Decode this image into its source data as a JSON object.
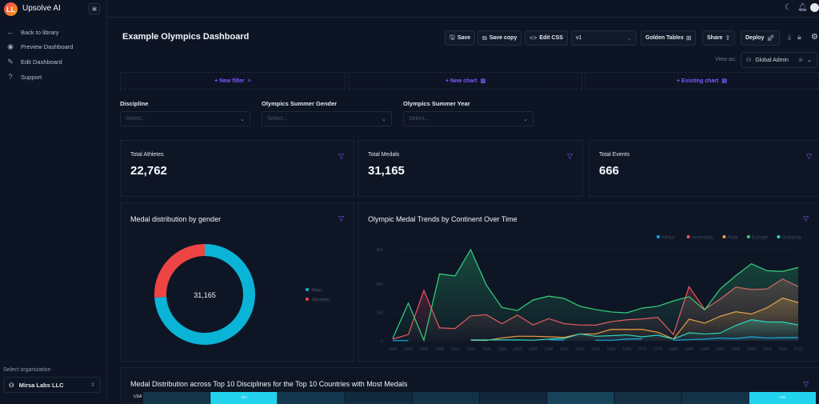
{
  "sidebar": {
    "brand": "Upsolve AI",
    "logo_text": "LL",
    "items": [
      {
        "label": "Back to library",
        "icon": "arrow-left-icon"
      },
      {
        "label": "Preview Dashboard",
        "icon": "eye-icon"
      },
      {
        "label": "Edit Dashboard",
        "icon": "edit-icon"
      },
      {
        "label": "Support",
        "icon": "help-circle-icon"
      }
    ],
    "org_label": "Select organization",
    "org_value": "Mirsa Labs LLC"
  },
  "header": {
    "title": "Example Olympics Dashboard",
    "buttons": {
      "save": "Save",
      "save_copy": "Save copy",
      "edit_css": "Edit CSS",
      "version": "v1",
      "golden_tables": "Golden Tables",
      "share": "Share",
      "deploy": "Deploy"
    },
    "view_as_label": "View as:",
    "view_as_value": "Global Admin"
  },
  "add_row": {
    "new_filter": "+ New filter",
    "new_chart": "+ New chart",
    "existing_chart": "+ Existing chart"
  },
  "filters": [
    {
      "label": "Discipline",
      "placeholder": "Select..."
    },
    {
      "label": "Olympics Summer Gender",
      "placeholder": "Select..."
    },
    {
      "label": "Olympics Summer Year",
      "placeholder": "Select..."
    }
  ],
  "kpis": [
    {
      "label": "Total Athletes",
      "value": "22,762"
    },
    {
      "label": "Total Medals",
      "value": "31,165"
    },
    {
      "label": "Total Events",
      "value": "666"
    }
  ],
  "colors": {
    "accent": "#7c5cff",
    "men": "#06b6d4",
    "women": "#ef4444"
  },
  "chart_data": [
    {
      "type": "pie",
      "title": "Medal distribution by gender",
      "center_label": "31,165",
      "categories": [
        "Men",
        "Women"
      ],
      "shares": [
        0.74,
        0.26
      ],
      "colors": [
        "#0ab4d6",
        "#ef4444"
      ],
      "legend": "right"
    },
    {
      "type": "area",
      "title": "Olympic Medal Trends by Continent Over Time",
      "legend": "top-right",
      "ylim": [
        0,
        800
      ],
      "yticks": [
        0,
        250,
        500,
        800
      ],
      "x": [
        1896,
        1900,
        1904,
        1908,
        1912,
        1920,
        1924,
        1928,
        1932,
        1936,
        1948,
        1952,
        1956,
        1960,
        1964,
        1968,
        1972,
        1976,
        1980,
        1984,
        1988,
        1992,
        1996,
        2000,
        2004,
        2008,
        2012
      ],
      "series": [
        {
          "name": "Africa",
          "color": "#0ea5e9",
          "values": [
            2,
            2,
            null,
            null,
            null,
            null,
            null,
            null,
            null,
            null,
            10,
            5,
            null,
            5,
            5,
            15,
            18,
            null,
            5,
            10,
            15,
            25,
            20,
            35,
            25,
            28,
            30
          ]
        },
        {
          "name": "Americas",
          "color": "#f0535e",
          "values": [
            15,
            55,
            442,
            113,
            108,
            218,
            229,
            150,
            226,
            139,
            195,
            150,
            139,
            137,
            168,
            184,
            192,
            205,
            55,
            476,
            276,
            366,
            471,
            450,
            455,
            542,
            476
          ]
        },
        {
          "name": "Asia",
          "color": "#f59e42",
          "values": [
            null,
            null,
            null,
            null,
            null,
            5,
            3,
            25,
            40,
            40,
            35,
            30,
            60,
            60,
            100,
            100,
            100,
            75,
            15,
            190,
            155,
            215,
            255,
            235,
            290,
            375,
            335
          ]
        },
        {
          "name": "Europe",
          "color": "#34d27b",
          "values": [
            20,
            331,
            5,
            587,
            569,
            800,
            490,
            292,
            266,
            358,
            392,
            371,
            303,
            274,
            253,
            245,
            287,
            303,
            350,
            387,
            271,
            455,
            571,
            676,
            615,
            609,
            643
          ]
        },
        {
          "name": "Oceania",
          "color": "#2dd4bf",
          "values": [
            null,
            null,
            null,
            null,
            null,
            8,
            8,
            8,
            8,
            5,
            15,
            20,
            60,
            40,
            45,
            52,
            35,
            50,
            15,
            70,
            60,
            68,
            135,
            185,
            165,
            165,
            140
          ]
        }
      ]
    },
    {
      "type": "heatmap",
      "title": "Medal Distribution across Top 10 Disciplines for the Top 10 Countries with Most Medals",
      "rows": [
        "USA"
      ],
      "intensity": [
        [
          0.25,
          1,
          0.3,
          0.1,
          0.2,
          0.05,
          0.45,
          0.15,
          0.2,
          1
        ]
      ],
      "labels": [
        [
          "",
          "304",
          "",
          "",
          "",
          "",
          "",
          "",
          "",
          "835"
        ]
      ]
    }
  ]
}
